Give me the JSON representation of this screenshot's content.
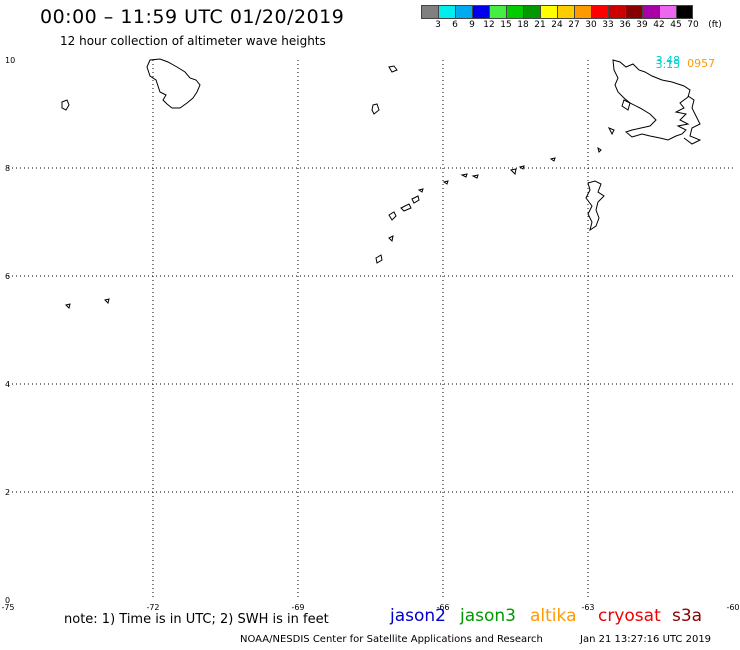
{
  "header": {
    "title": "00:00 – 11:59 UTC 01/20/2019",
    "subtitle": "12 hour collection of altimeter wave heights"
  },
  "legend": {
    "unit": "(ft)",
    "swatches": [
      {
        "color": "#808080",
        "label": "3"
      },
      {
        "color": "#00eeee",
        "label": "6"
      },
      {
        "color": "#00aaee",
        "label": "9"
      },
      {
        "color": "#0000ee",
        "label": "12"
      },
      {
        "color": "#44ee44",
        "label": "15"
      },
      {
        "color": "#00cc00",
        "label": "18"
      },
      {
        "color": "#009900",
        "label": "21"
      },
      {
        "color": "#ffff00",
        "label": "24"
      },
      {
        "color": "#ffcc00",
        "label": "27"
      },
      {
        "color": "#ff9900",
        "label": "30"
      },
      {
        "color": "#ff0000",
        "label": "33"
      },
      {
        "color": "#cc0000",
        "label": "36"
      },
      {
        "color": "#880000",
        "label": "39"
      },
      {
        "color": "#aa00aa",
        "label": "42"
      },
      {
        "color": "#ee66ee",
        "label": "45"
      },
      {
        "color": "#000000",
        "label": "70"
      }
    ]
  },
  "axes": {
    "lon_ticks": [
      "-75",
      "-72",
      "-69",
      "-66",
      "-63",
      "-60"
    ],
    "lat_ticks": [
      "0",
      "2",
      "4",
      "6",
      "8",
      "10"
    ]
  },
  "wave_labels": [
    {
      "text": "3.48",
      "color": "#00cccc",
      "lon": -61.6,
      "lat": 9.93
    },
    {
      "text": "3.15",
      "color": "#00cccc",
      "lon": -61.6,
      "lat": 9.85
    },
    {
      "text": "0957",
      "color": "#ff9900",
      "lon": -60.95,
      "lat": 9.87
    }
  ],
  "footer": {
    "note": "note: 1) Time is in UTC; 2) SWH is in feet",
    "satellites": [
      {
        "name": "jason2",
        "color": "#0000cc"
      },
      {
        "name": "jason3",
        "color": "#009900"
      },
      {
        "name": "altika",
        "color": "#ff9900"
      },
      {
        "name": "cryosat",
        "color": "#ee0000"
      },
      {
        "name": "s3a",
        "color": "#880000"
      }
    ],
    "credit": "NOAA/NESDIS Center for Satellite Applications and Research",
    "timestamp": "Jan 21 13:27:16 UTC 2019"
  },
  "map": {
    "lon_range": [
      -75,
      -60
    ],
    "lat_range": [
      0,
      10
    ]
  }
}
